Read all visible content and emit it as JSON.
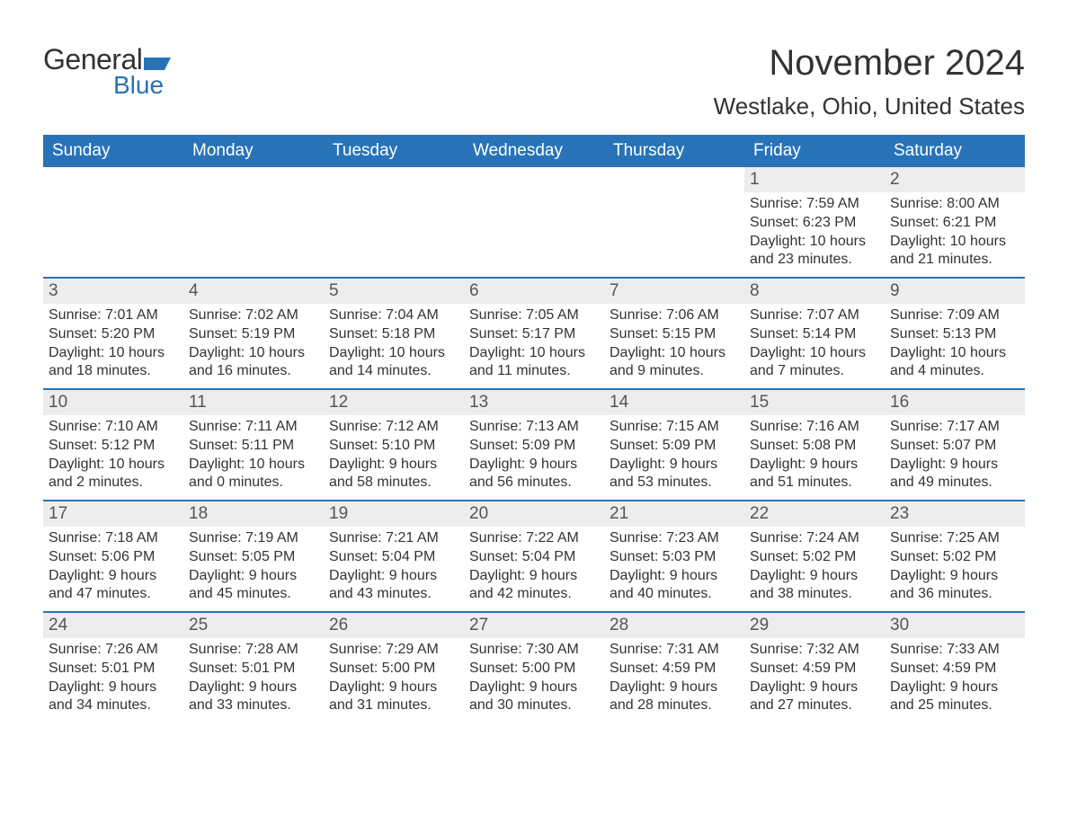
{
  "brand": {
    "text_general": "General",
    "text_blue": "Blue",
    "flag_color": "#2873b8"
  },
  "title": {
    "month": "November 2024",
    "location": "Westlake, Ohio, United States"
  },
  "colors": {
    "header_bg": "#2873b8",
    "header_text": "#ffffff",
    "daynum_bg": "#ededed",
    "week_border": "#2873b8",
    "body_text": "#333333"
  },
  "fonts": {
    "month_title_size": 40,
    "location_size": 26,
    "header_cell_size": 19,
    "daynum_size": 19,
    "body_size": 16
  },
  "header_days": [
    "Sunday",
    "Monday",
    "Tuesday",
    "Wednesday",
    "Thursday",
    "Friday",
    "Saturday"
  ],
  "field_labels": {
    "sunrise": "Sunrise:",
    "sunset": "Sunset:",
    "daylight": "Daylight:"
  },
  "weeks": [
    [
      null,
      null,
      null,
      null,
      null,
      {
        "n": "1",
        "sunrise": "7:59 AM",
        "sunset": "6:23 PM",
        "daylight": "10 hours and 23 minutes."
      },
      {
        "n": "2",
        "sunrise": "8:00 AM",
        "sunset": "6:21 PM",
        "daylight": "10 hours and 21 minutes."
      }
    ],
    [
      {
        "n": "3",
        "sunrise": "7:01 AM",
        "sunset": "5:20 PM",
        "daylight": "10 hours and 18 minutes."
      },
      {
        "n": "4",
        "sunrise": "7:02 AM",
        "sunset": "5:19 PM",
        "daylight": "10 hours and 16 minutes."
      },
      {
        "n": "5",
        "sunrise": "7:04 AM",
        "sunset": "5:18 PM",
        "daylight": "10 hours and 14 minutes."
      },
      {
        "n": "6",
        "sunrise": "7:05 AM",
        "sunset": "5:17 PM",
        "daylight": "10 hours and 11 minutes."
      },
      {
        "n": "7",
        "sunrise": "7:06 AM",
        "sunset": "5:15 PM",
        "daylight": "10 hours and 9 minutes."
      },
      {
        "n": "8",
        "sunrise": "7:07 AM",
        "sunset": "5:14 PM",
        "daylight": "10 hours and 7 minutes."
      },
      {
        "n": "9",
        "sunrise": "7:09 AM",
        "sunset": "5:13 PM",
        "daylight": "10 hours and 4 minutes."
      }
    ],
    [
      {
        "n": "10",
        "sunrise": "7:10 AM",
        "sunset": "5:12 PM",
        "daylight": "10 hours and 2 minutes."
      },
      {
        "n": "11",
        "sunrise": "7:11 AM",
        "sunset": "5:11 PM",
        "daylight": "10 hours and 0 minutes."
      },
      {
        "n": "12",
        "sunrise": "7:12 AM",
        "sunset": "5:10 PM",
        "daylight": "9 hours and 58 minutes."
      },
      {
        "n": "13",
        "sunrise": "7:13 AM",
        "sunset": "5:09 PM",
        "daylight": "9 hours and 56 minutes."
      },
      {
        "n": "14",
        "sunrise": "7:15 AM",
        "sunset": "5:09 PM",
        "daylight": "9 hours and 53 minutes."
      },
      {
        "n": "15",
        "sunrise": "7:16 AM",
        "sunset": "5:08 PM",
        "daylight": "9 hours and 51 minutes."
      },
      {
        "n": "16",
        "sunrise": "7:17 AM",
        "sunset": "5:07 PM",
        "daylight": "9 hours and 49 minutes."
      }
    ],
    [
      {
        "n": "17",
        "sunrise": "7:18 AM",
        "sunset": "5:06 PM",
        "daylight": "9 hours and 47 minutes."
      },
      {
        "n": "18",
        "sunrise": "7:19 AM",
        "sunset": "5:05 PM",
        "daylight": "9 hours and 45 minutes."
      },
      {
        "n": "19",
        "sunrise": "7:21 AM",
        "sunset": "5:04 PM",
        "daylight": "9 hours and 43 minutes."
      },
      {
        "n": "20",
        "sunrise": "7:22 AM",
        "sunset": "5:04 PM",
        "daylight": "9 hours and 42 minutes."
      },
      {
        "n": "21",
        "sunrise": "7:23 AM",
        "sunset": "5:03 PM",
        "daylight": "9 hours and 40 minutes."
      },
      {
        "n": "22",
        "sunrise": "7:24 AM",
        "sunset": "5:02 PM",
        "daylight": "9 hours and 38 minutes."
      },
      {
        "n": "23",
        "sunrise": "7:25 AM",
        "sunset": "5:02 PM",
        "daylight": "9 hours and 36 minutes."
      }
    ],
    [
      {
        "n": "24",
        "sunrise": "7:26 AM",
        "sunset": "5:01 PM",
        "daylight": "9 hours and 34 minutes."
      },
      {
        "n": "25",
        "sunrise": "7:28 AM",
        "sunset": "5:01 PM",
        "daylight": "9 hours and 33 minutes."
      },
      {
        "n": "26",
        "sunrise": "7:29 AM",
        "sunset": "5:00 PM",
        "daylight": "9 hours and 31 minutes."
      },
      {
        "n": "27",
        "sunrise": "7:30 AM",
        "sunset": "5:00 PM",
        "daylight": "9 hours and 30 minutes."
      },
      {
        "n": "28",
        "sunrise": "7:31 AM",
        "sunset": "4:59 PM",
        "daylight": "9 hours and 28 minutes."
      },
      {
        "n": "29",
        "sunrise": "7:32 AM",
        "sunset": "4:59 PM",
        "daylight": "9 hours and 27 minutes."
      },
      {
        "n": "30",
        "sunrise": "7:33 AM",
        "sunset": "4:59 PM",
        "daylight": "9 hours and 25 minutes."
      }
    ]
  ]
}
